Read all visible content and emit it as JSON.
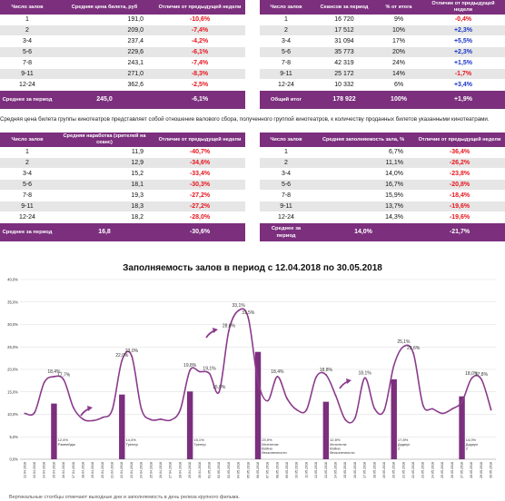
{
  "table_price": {
    "headers": [
      "Число залов",
      "Средняя цена билета, руб",
      "Отличие от предыдущей недели"
    ],
    "rows": [
      {
        "halls": "1",
        "value": "191,0",
        "diff": "-10,6%"
      },
      {
        "halls": "2",
        "value": "209,0",
        "diff": "-7,4%"
      },
      {
        "halls": "3-4",
        "value": "237,4",
        "diff": "-4,2%"
      },
      {
        "halls": "5-6",
        "value": "229,6",
        "diff": "-6,1%"
      },
      {
        "halls": "7-8",
        "value": "243,1",
        "diff": "-7,4%"
      },
      {
        "halls": "9-11",
        "value": "271,0",
        "diff": "-8,3%"
      },
      {
        "halls": "12-24",
        "value": "362,6",
        "diff": "-2,5%"
      }
    ],
    "total": {
      "label": "Среднее за период",
      "value": "245,0",
      "diff": "-6,1%"
    }
  },
  "table_sessions": {
    "headers": [
      "Число залов",
      "Сеансов за период",
      "% от итога",
      "Отличие от предыдущей недели"
    ],
    "rows": [
      {
        "halls": "1",
        "value": "16 720",
        "share": "9%",
        "diff": "-0,4%"
      },
      {
        "halls": "2",
        "value": "17 512",
        "share": "10%",
        "diff": "+2,3%"
      },
      {
        "halls": "3-4",
        "value": "31 094",
        "share": "17%",
        "diff": "+5,5%"
      },
      {
        "halls": "5-6",
        "value": "35 773",
        "share": "20%",
        "diff": "+2,3%"
      },
      {
        "halls": "7-8",
        "value": "42 319",
        "share": "24%",
        "diff": "+1,5%"
      },
      {
        "halls": "9-11",
        "value": "25 172",
        "share": "14%",
        "diff": "-1,7%"
      },
      {
        "halls": "12-24",
        "value": "10 332",
        "share": "6%",
        "diff": "+3,4%"
      }
    ],
    "total": {
      "label": "Общий итог",
      "value": "178 922",
      "share": "100%",
      "diff": "+1,9%"
    }
  },
  "note": "Средняя цена билета группы кинотеатров представляет собой отношение валового сбора, полученного группой кинотеатров, к количеству проданных билетов указанными кинотеатрами.",
  "table_attendance": {
    "headers": [
      "Число залов",
      "Средняя наработка (зрителей на сеанс)",
      "Отличие от предыдущей недели"
    ],
    "rows": [
      {
        "halls": "1",
        "value": "11,9",
        "diff": "-40,7%"
      },
      {
        "halls": "2",
        "value": "12,9",
        "diff": "-34,6%"
      },
      {
        "halls": "3-4",
        "value": "15,2",
        "diff": "-33,4%"
      },
      {
        "halls": "5-6",
        "value": "18,1",
        "diff": "-30,3%"
      },
      {
        "halls": "7-8",
        "value": "19,3",
        "diff": "-27,2%"
      },
      {
        "halls": "9-11",
        "value": "18,3",
        "diff": "-27,2%"
      },
      {
        "halls": "12-24",
        "value": "18,2",
        "diff": "-28,0%"
      }
    ],
    "total": {
      "label": "Среднее за период",
      "value": "16,8",
      "diff": "-30,6%"
    }
  },
  "table_occupancy": {
    "headers": [
      "Число залов",
      "Средняя заполняемость зала, %",
      "Отличие от предыдущей недели"
    ],
    "rows": [
      {
        "halls": "1",
        "value": "6,7%",
        "diff": "-36,4%"
      },
      {
        "halls": "2",
        "value": "11,1%",
        "diff": "-26,2%"
      },
      {
        "halls": "3-4",
        "value": "14,0%",
        "diff": "-23,8%"
      },
      {
        "halls": "5-6",
        "value": "16,7%",
        "diff": "-20,8%"
      },
      {
        "halls": "7-8",
        "value": "15,9%",
        "diff": "-18,4%"
      },
      {
        "halls": "9-11",
        "value": "13,7%",
        "diff": "-19,6%"
      },
      {
        "halls": "12-24",
        "value": "14,3%",
        "diff": "-19,6%"
      }
    ],
    "total": {
      "label": "Среднее за период",
      "value": "14,0%",
      "diff": "-21,7%"
    }
  },
  "colors": {
    "accent": "#7b2f7d",
    "negative": "#e8141c",
    "positive": "#1a35c8",
    "line": "#8a3b8c",
    "bar": "#7b2f7d"
  },
  "footnote": "Вертикальные столбцы отмечают выходные дни и заполняемость в день релиза крупного фильма.",
  "chart_data": {
    "type": "line",
    "title": "Заполняемость залов в период с 12.04.2018 по 30.05.2018",
    "ylim": [
      0,
      40
    ],
    "yticks": [
      "0,0%",
      "5,0%",
      "10,0%",
      "15,0%",
      "20,0%",
      "25,0%",
      "30,0%",
      "35,0%",
      "40,0%"
    ],
    "grid": true,
    "x": [
      "12.04.2018",
      "13.04.2018",
      "14.04.2018",
      "15.04.2018",
      "16.04.2018",
      "17.04.2018",
      "18.04.2018",
      "19.04.2018",
      "20.04.2018",
      "21.04.2018",
      "22.04.2018",
      "23.04.2018",
      "24.04.2018",
      "25.04.2018",
      "26.04.2018",
      "27.04.2018",
      "28.04.2018",
      "29.04.2018",
      "30.04.2018",
      "01.05.2018",
      "02.05.2018",
      "03.05.2018",
      "04.05.2018",
      "05.05.2018",
      "06.05.2018",
      "07.05.2018",
      "08.05.2018",
      "09.05.2018",
      "10.05.2018",
      "11.05.2018",
      "12.05.2018",
      "13.05.2018",
      "14.05.2018",
      "15.05.2018",
      "16.05.2018",
      "17.05.2018",
      "18.05.2018",
      "19.05.2018",
      "20.05.2018",
      "21.05.2018",
      "22.05.2018",
      "23.05.2018",
      "24.05.2018",
      "25.05.2018",
      "26.05.2018",
      "27.05.2018",
      "28.05.2018",
      "29.05.2018",
      "30.05.2018"
    ],
    "series": [
      {
        "values": [
          10.2,
          10.4,
          17.1,
          18.4,
          17.7,
          11.5,
          8.9,
          8.6,
          9.3,
          11.0,
          22.0,
          23.0,
          11.2,
          8.8,
          8.9,
          8.7,
          11.0,
          19.8,
          19.5,
          19.1,
          15.0,
          28.6,
          33.1,
          31.5,
          17.4,
          13.0,
          18.4,
          13.5,
          11.0,
          11.0,
          18.3,
          18.8,
          14.2,
          8.8,
          9.2,
          18.1,
          11.3,
          10.9,
          20.9,
          25.1,
          23.6,
          12.0,
          11.2,
          10.2,
          11.2,
          12.8,
          18.0,
          17.8,
          11.0
        ]
      }
    ],
    "bars": [
      {
        "date": "15.04.2018",
        "value": 12.4,
        "label": "12,4%",
        "film": "Рэмпейдж"
      },
      {
        "date": "22.04.2018",
        "value": 14.4,
        "label": "14,4%",
        "film": "Тренер"
      },
      {
        "date": "29.04.2018",
        "value": 15.1,
        "label": "15,1%",
        "film": "Тренер"
      },
      {
        "date": "06.05.2018",
        "value": 23.9,
        "label": "23,9%",
        "film": "Мстители: Война бесконечности"
      },
      {
        "date": "13.05.2018",
        "value": 12.8,
        "label": "12,8%",
        "film": "Мстители: Война бесконечности"
      },
      {
        "date": "20.05.2018",
        "value": 17.8,
        "label": "17,8%",
        "film": "Дэдпул 2"
      },
      {
        "date": "27.05.2018",
        "value": 14.0,
        "label": "14,0%",
        "film": "Дэдпул 2"
      }
    ],
    "point_labels": [
      {
        "index": 3,
        "text": "18,4%"
      },
      {
        "index": 4,
        "text": "17,7%"
      },
      {
        "index": 10,
        "text": "22,0%"
      },
      {
        "index": 11,
        "text": "23,0%"
      },
      {
        "index": 17,
        "text": "19,8%"
      },
      {
        "index": 19,
        "text": "19,1%"
      },
      {
        "index": 20,
        "text": "15,0%"
      },
      {
        "index": 21,
        "text": "28,6%"
      },
      {
        "index": 22,
        "text": "33,1%"
      },
      {
        "index": 23,
        "text": "31,5%"
      },
      {
        "index": 26,
        "text": "18,4%"
      },
      {
        "index": 31,
        "text": "18,8%"
      },
      {
        "index": 35,
        "text": "18,1%"
      },
      {
        "index": 39,
        "text": "25,1%"
      },
      {
        "index": 40,
        "text": "23,6%"
      },
      {
        "index": 46,
        "text": "18,0%"
      },
      {
        "index": 47,
        "text": "17,8%"
      }
    ]
  }
}
